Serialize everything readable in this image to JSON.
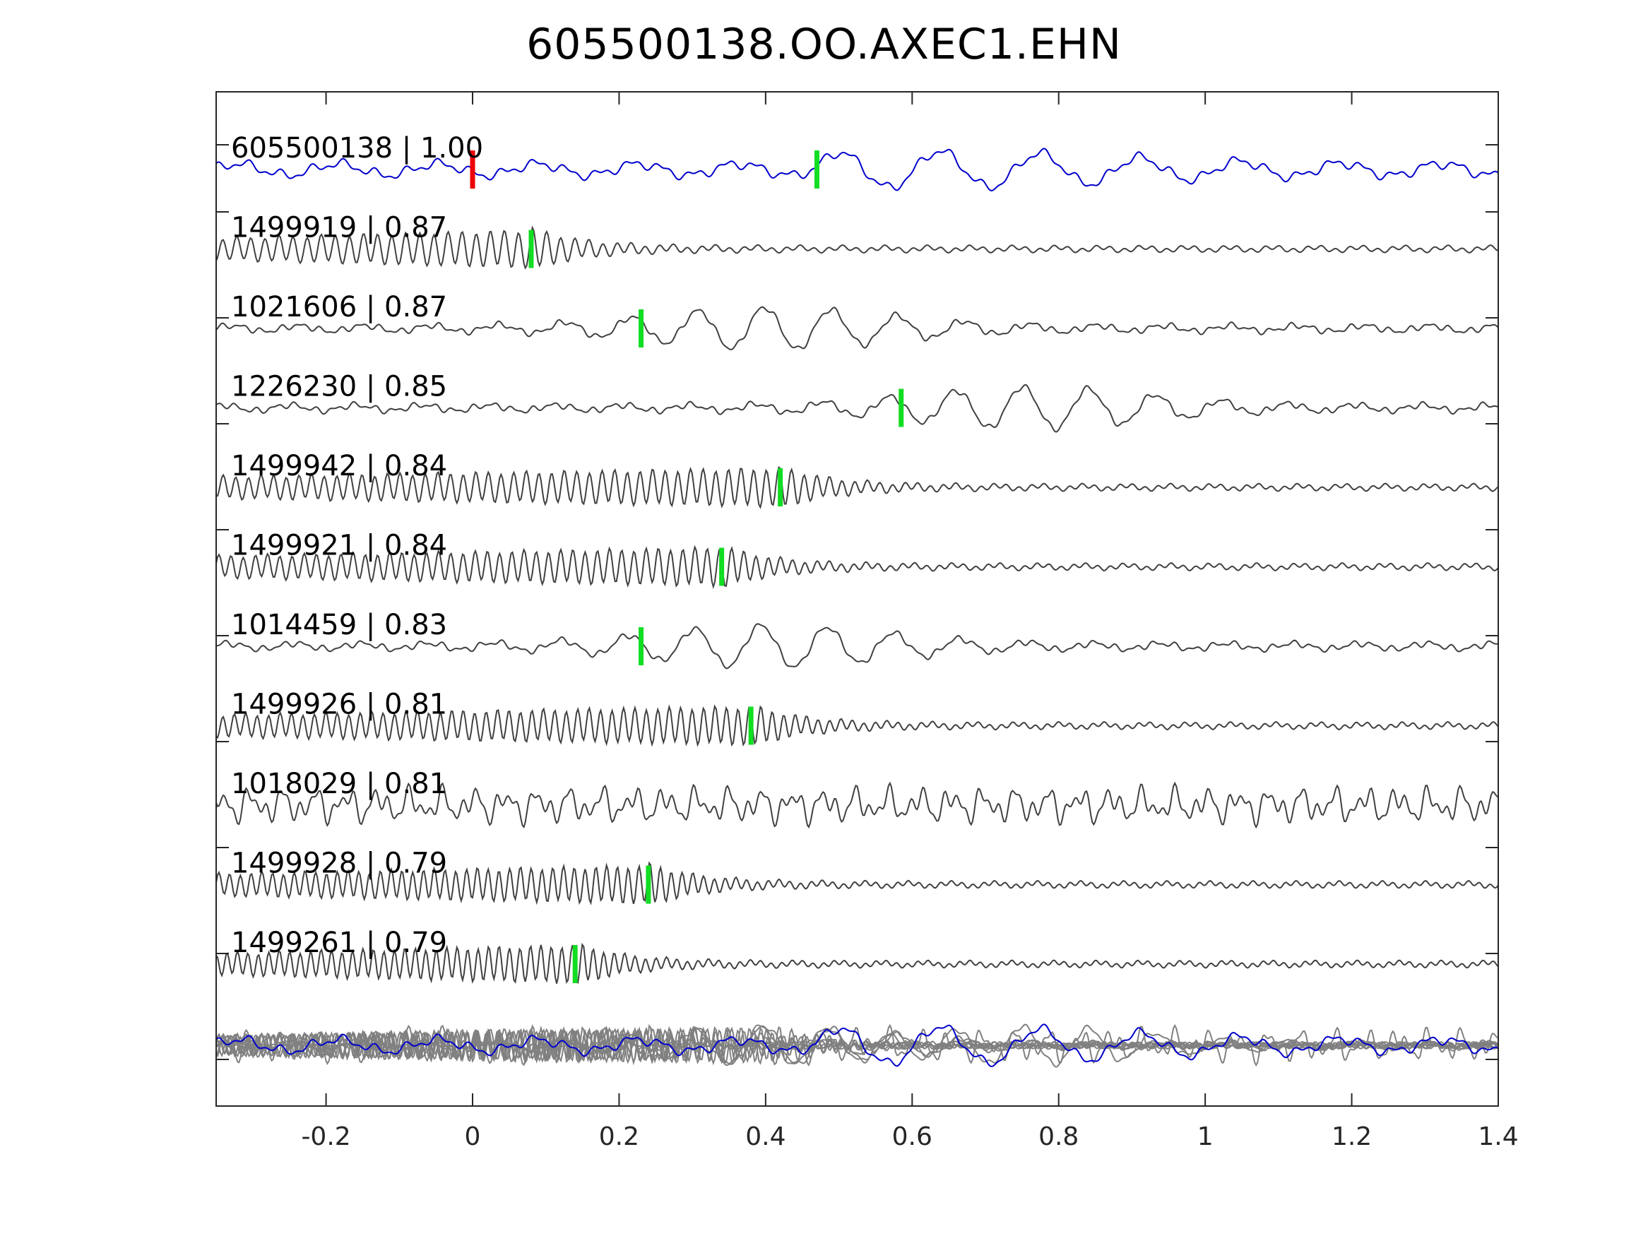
{
  "title": "605500138.OO.AXEC1.EHN",
  "chart_data": {
    "type": "line",
    "title": "605500138.OO.AXEC1.EHN",
    "xlabel": "",
    "ylabel": "",
    "xlim": [
      -0.35,
      1.4
    ],
    "xticks": [
      -0.2,
      0,
      0.2,
      0.4,
      0.6,
      0.8,
      1,
      1.2,
      1.4
    ],
    "xtick_labels": [
      "-0.2",
      "0",
      "0.2",
      "0.4",
      "0.6",
      "0.8",
      "1",
      "1.2",
      "1.4"
    ],
    "grid": false,
    "colors": {
      "template": "#0000cc",
      "match": "#404040",
      "stack": "#808080",
      "red_pick": "#ee0000",
      "green_pick": "#11dd22",
      "axis": "#262626"
    },
    "template_trace": {
      "label": "605500138 | 1.00",
      "red_pick": 0.0,
      "green_pick": 0.47
    },
    "traces": [
      {
        "label": "1499919 | 0.87",
        "pick": 0.08,
        "style": "ringing"
      },
      {
        "label": "1021606 | 0.87",
        "pick": 0.23,
        "style": "event"
      },
      {
        "label": "1226230 | 0.85",
        "pick": 0.585,
        "style": "event"
      },
      {
        "label": "1499942 | 0.84",
        "pick": 0.42,
        "style": "ringing"
      },
      {
        "label": "1499921 | 0.84",
        "pick": 0.34,
        "style": "ringing"
      },
      {
        "label": "1014459 | 0.83",
        "pick": 0.23,
        "style": "event"
      },
      {
        "label": "1499926 | 0.81",
        "pick": 0.38,
        "style": "ringing"
      },
      {
        "label": "1018029 | 0.81",
        "pick": null,
        "style": "noisy"
      },
      {
        "label": "1499928 | 0.79",
        "pick": 0.24,
        "style": "ringing"
      },
      {
        "label": "1499261 | 0.79",
        "pick": 0.14,
        "style": "ringing"
      }
    ],
    "stack": "overlay of all traces with template"
  }
}
